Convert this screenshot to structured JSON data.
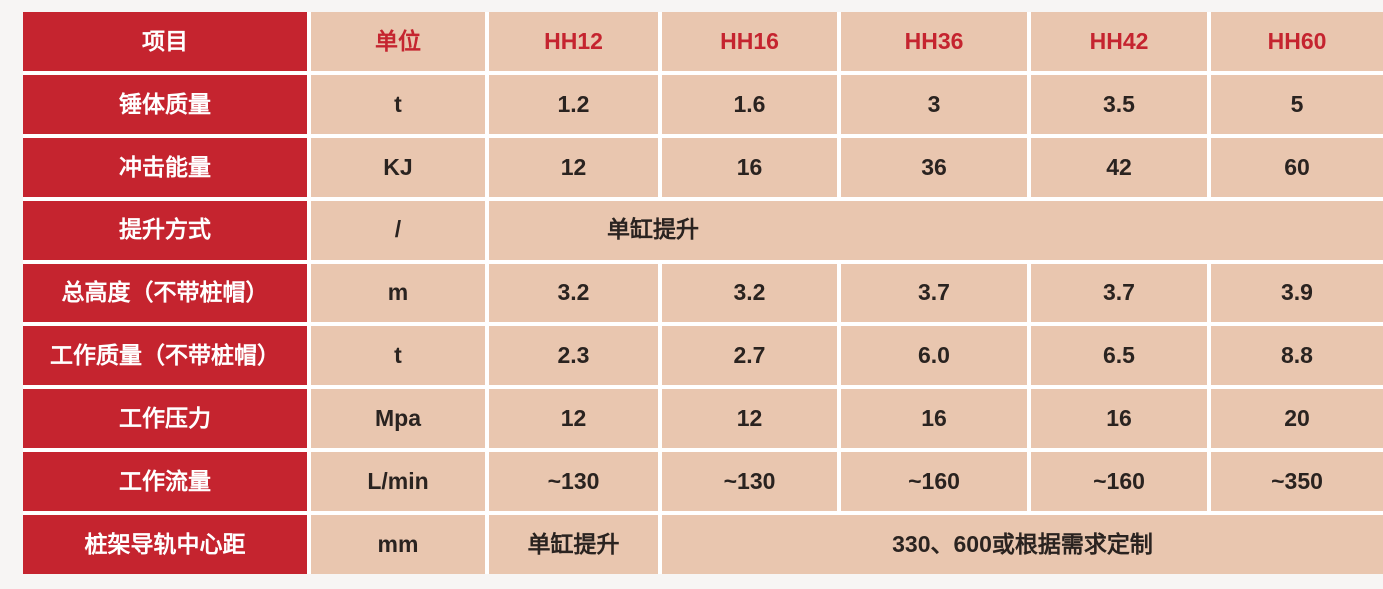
{
  "colors": {
    "brand_red": "#c5242f",
    "cell_tan": "#e9c6af",
    "text_dark": "#2a2320",
    "divider": "#ffffff",
    "page_background": "#f7f5f4"
  },
  "table": {
    "header": {
      "item_label": "项目",
      "unit_label": "单位",
      "models": [
        "HH12",
        "HH16",
        "HH36",
        "HH42",
        "HH60"
      ]
    },
    "rows": [
      {
        "label": "锤体质量",
        "unit": "t",
        "values": [
          "1.2",
          "1.6",
          "3",
          "3.5",
          "5"
        ]
      },
      {
        "label": "冲击能量",
        "unit": "KJ",
        "values": [
          "12",
          "16",
          "36",
          "42",
          "60"
        ]
      },
      {
        "label": "提升方式",
        "unit": "/",
        "span_value": "单缸提升"
      },
      {
        "label": "总高度（不带桩帽）",
        "unit": "m",
        "values": [
          "3.2",
          "3.2",
          "3.7",
          "3.7",
          "3.9"
        ]
      },
      {
        "label": "工作质量（不带桩帽）",
        "unit": "t",
        "values": [
          "2.3",
          "2.7",
          "6.0",
          "6.5",
          "8.8"
        ]
      },
      {
        "label": "工作压力",
        "unit": "Mpa",
        "values": [
          "12",
          "12",
          "16",
          "16",
          "20"
        ]
      },
      {
        "label": "工作流量",
        "unit": "L/min",
        "values": [
          "~130",
          "~130",
          "~160",
          "~160",
          "~350"
        ]
      },
      {
        "label": "桩架导轨中心距",
        "unit": "mm",
        "first_value": "单缸提升",
        "span_value": "330、600或根据需求定制"
      }
    ]
  }
}
